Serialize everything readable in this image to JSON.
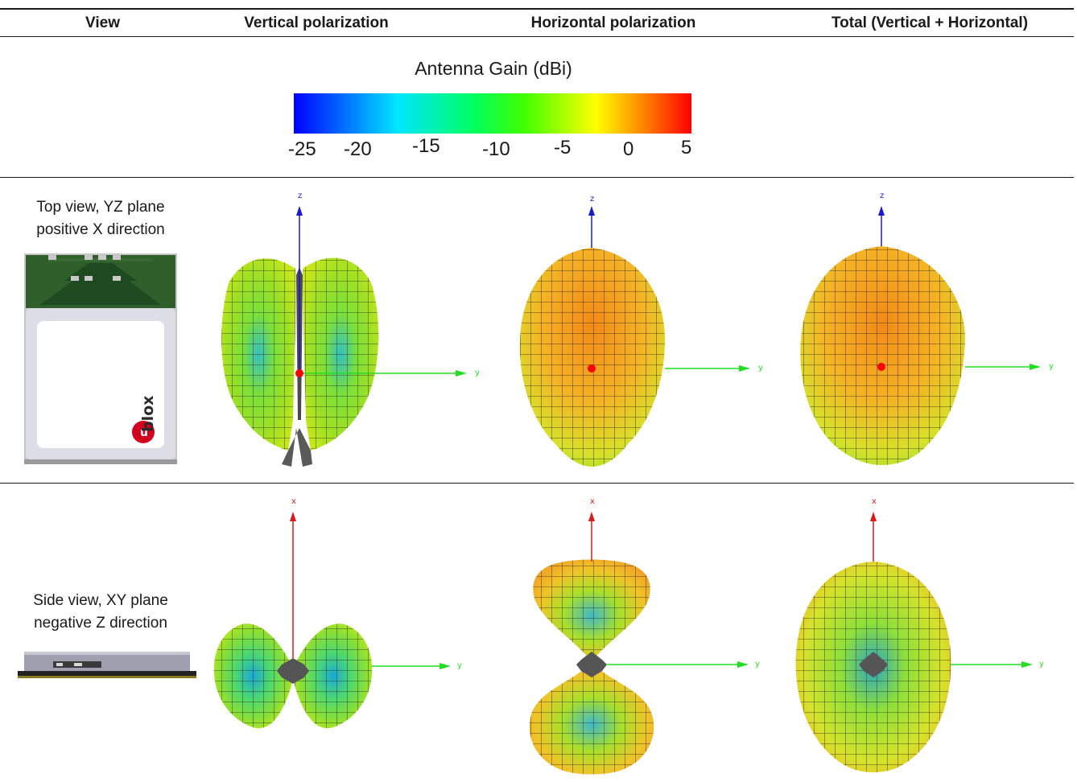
{
  "table": {
    "headers": [
      "View",
      "Vertical polarization",
      "Horizontal polarization",
      "Total (Vertical + Horizontal)"
    ]
  },
  "legend": {
    "title": "Antenna Gain (dBi)",
    "ticks": [
      "-25",
      "-20",
      "-15",
      "-10",
      "-5",
      "0",
      "5"
    ],
    "gradient_colors": [
      "#0000ff",
      "#00e6ff",
      "#00ff60",
      "#40ff00",
      "#ffff00",
      "#ff9900",
      "#ff0000"
    ]
  },
  "rows": [
    {
      "label_line1": "Top view, YZ plane",
      "label_line2": "positive X direction",
      "vertical_axis_label": "z",
      "horizontal_axis_label": "y",
      "vertical_axis_color": "#1a1acc",
      "horizontal_axis_color": "#22dd22"
    },
    {
      "label_line1": "Side view, XY plane",
      "label_line2": "negative Z direction",
      "vertical_axis_label": "x",
      "horizontal_axis_label": "y",
      "vertical_axis_color": "#dd1a1a",
      "horizontal_axis_color": "#22dd22"
    }
  ],
  "module_logo_text": "ublox",
  "colors": {
    "grid_line": "#222222",
    "origin_marker": "#ff0000"
  }
}
